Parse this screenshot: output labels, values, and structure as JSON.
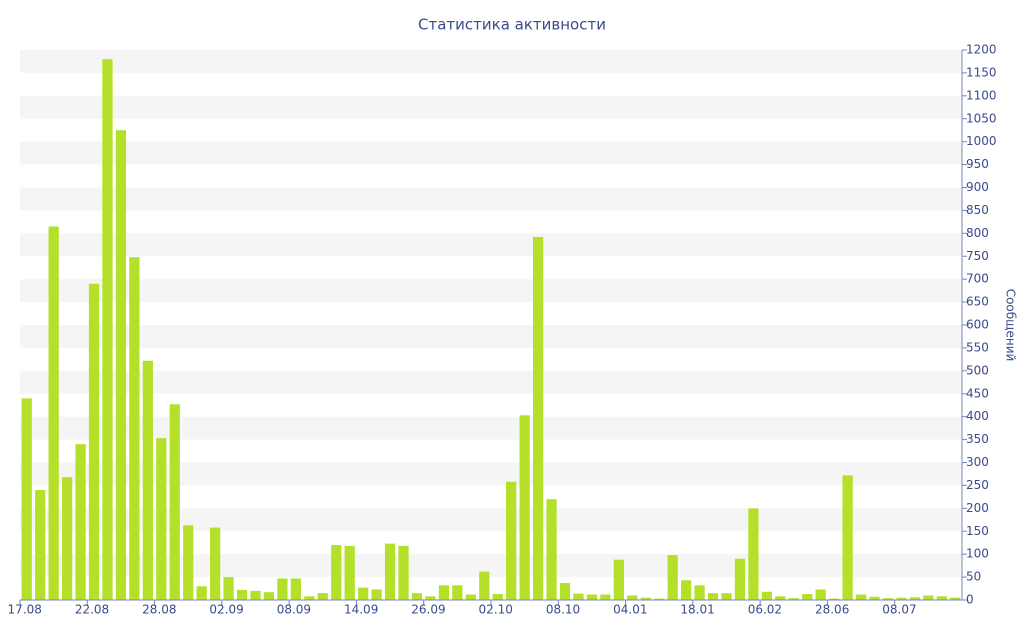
{
  "chart_data": {
    "type": "bar",
    "title": "Статистика активности",
    "y_axis_label": "Сообщений",
    "categories": [
      "17.08",
      null,
      null,
      null,
      null,
      "22.08",
      null,
      null,
      null,
      null,
      "28.08",
      null,
      null,
      null,
      null,
      "02.09",
      null,
      null,
      null,
      null,
      "08.09",
      null,
      null,
      null,
      null,
      "14.09",
      null,
      null,
      null,
      null,
      "26.09",
      null,
      null,
      null,
      null,
      "02.10",
      null,
      null,
      null,
      null,
      "08.10",
      null,
      null,
      null,
      null,
      "04.01",
      null,
      null,
      null,
      null,
      "18.01",
      null,
      null,
      null,
      null,
      "06.02",
      null,
      null,
      null,
      null,
      "28.06",
      null,
      null,
      null,
      null,
      "08.07",
      null,
      null,
      null,
      null
    ],
    "values": [
      440,
      240,
      815,
      268,
      340,
      690,
      1180,
      1025,
      748,
      522,
      353,
      427,
      163,
      30,
      158,
      50,
      22,
      20,
      17,
      47,
      47,
      8,
      15,
      120,
      118,
      27,
      23,
      123,
      118,
      15,
      8,
      32,
      32,
      12,
      62,
      13,
      258,
      403,
      792,
      220,
      37,
      14,
      12,
      12,
      88,
      10,
      5,
      3,
      98,
      43,
      32,
      15,
      15,
      90,
      200,
      18,
      8,
      4,
      13,
      23,
      3,
      272,
      12,
      7,
      4,
      5,
      6,
      10,
      8,
      5
    ],
    "color": "#b5e02a",
    "ylim": [
      0,
      1200
    ],
    "yticks": [
      0,
      50,
      100,
      150,
      200,
      250,
      300,
      350,
      400,
      450,
      500,
      550,
      600,
      650,
      700,
      750,
      800,
      850,
      900,
      950,
      1000,
      1050,
      1100,
      1150,
      1200
    ],
    "grid": true
  }
}
